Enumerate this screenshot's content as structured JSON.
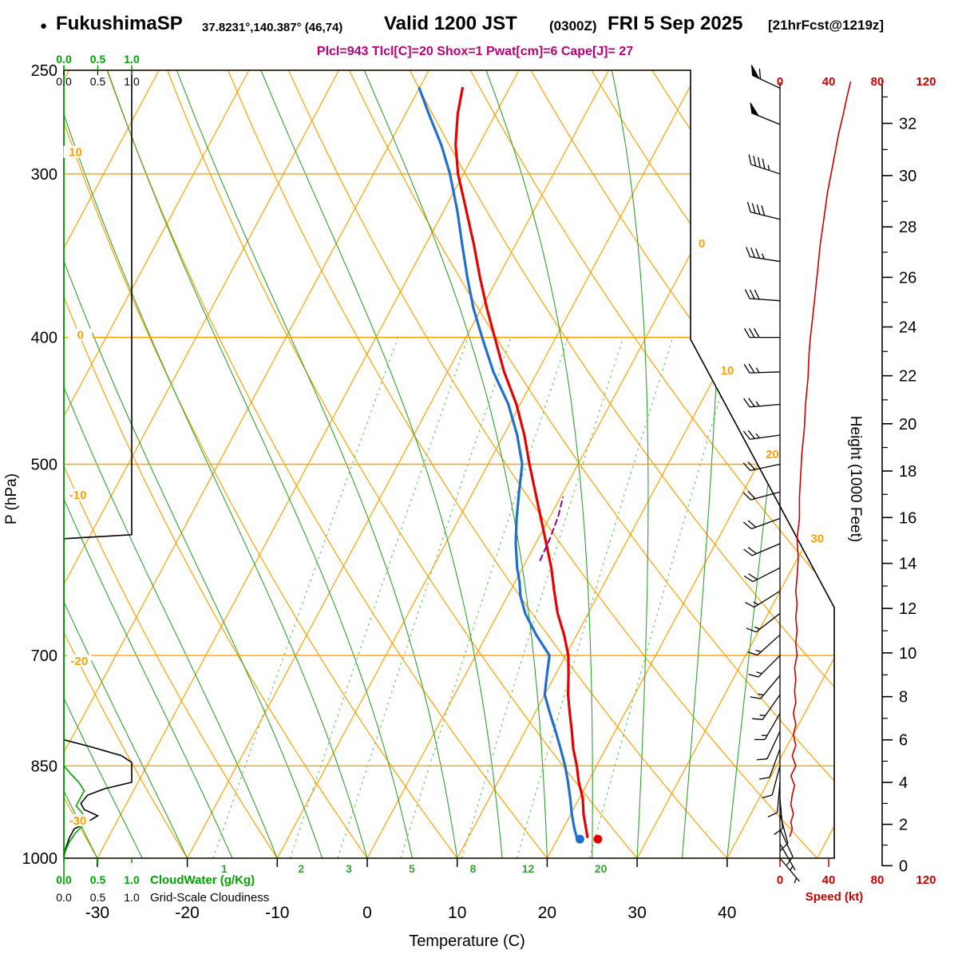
{
  "header": {
    "bullet": "●",
    "station": "FukushimaSP",
    "coords": "37.8231°,140.387° (46,74)",
    "valid": "Valid 1200 JST",
    "valid_utc": "(0300Z)",
    "valid_date": "FRI 5 Sep 2025",
    "forecast": "[21hrFcst@1219z]",
    "params": "Plcl=943 Tlcl[C]=20 Shox=1 Pwat[cm]=6 Cape[J]= 27"
  },
  "axes": {
    "pressure": {
      "label": "P (hPa)"
    },
    "temperature": {
      "label": "Temperature (C)"
    },
    "height": {
      "label": "Height (1000 Feet)"
    },
    "speed": {
      "label": "Speed (kt)"
    },
    "cloudwater": {
      "label": "CloudWater (g/Kg)"
    },
    "cloudiness": {
      "label": "Grid-Scale Cloudiness"
    }
  },
  "colors": {
    "isolines_orange": "#ffa000",
    "moist_adiabat_green": "#2fa12f",
    "mixing_green": "#5cbf5c",
    "mixing_label_green": "#3aa23a",
    "cloudwater_green": "#00a400",
    "temperature_red": "#e60000",
    "dewpoint_blue": "#1f6fce",
    "parcel_purple": "#8b008b",
    "wind_speed_red": "#cc0000",
    "params_magenta": "#bb0077",
    "axis_black": "#000000"
  },
  "chart_data": {
    "type": "skewt_log_p_sounding",
    "pressure_ticks_hpa": [
      250,
      300,
      400,
      500,
      700,
      850,
      1000
    ],
    "temperature_ticks_c": [
      -30,
      -20,
      -10,
      0,
      10,
      20,
      30,
      40
    ],
    "height_ticks_kft": [
      0,
      2,
      4,
      6,
      8,
      10,
      12,
      14,
      16,
      18,
      20,
      22,
      24,
      26,
      28,
      30,
      32
    ],
    "speed_ticks_kt": [
      0,
      40,
      80,
      120
    ],
    "isotherm_labels_c": [
      0,
      10,
      20,
      30
    ],
    "dry_adiabat_labels_c": [
      10,
      0,
      -10,
      -20,
      -30
    ],
    "mixing_ratio_lines_gkg": [
      1,
      2,
      3,
      5,
      8,
      12,
      20
    ],
    "cloud_scale_ticks": [
      "0.0",
      "0.5",
      "1.0"
    ],
    "temperature_profile_p_c": [
      [
        963,
        23.2
      ],
      [
        950,
        22.6
      ],
      [
        925,
        21.4
      ],
      [
        900,
        20.4
      ],
      [
        875,
        19.0
      ],
      [
        850,
        17.8
      ],
      [
        825,
        16.4
      ],
      [
        800,
        15.2
      ],
      [
        775,
        13.9
      ],
      [
        750,
        12.6
      ],
      [
        725,
        11.5
      ],
      [
        700,
        10.3
      ],
      [
        675,
        8.6
      ],
      [
        650,
        6.6
      ],
      [
        625,
        4.9
      ],
      [
        600,
        3.2
      ],
      [
        575,
        1.2
      ],
      [
        550,
        -0.9
      ],
      [
        525,
        -3.1
      ],
      [
        500,
        -5.4
      ],
      [
        475,
        -7.7
      ],
      [
        450,
        -10.4
      ],
      [
        425,
        -13.7
      ],
      [
        400,
        -16.8
      ],
      [
        380,
        -19.4
      ],
      [
        360,
        -22.0
      ],
      [
        340,
        -24.6
      ],
      [
        320,
        -27.5
      ],
      [
        300,
        -30.6
      ],
      [
        285,
        -32.6
      ],
      [
        270,
        -34.2
      ],
      [
        258,
        -35.2
      ]
    ],
    "dewpoint_profile_p_c": [
      [
        963,
        22.0
      ],
      [
        950,
        21.3
      ],
      [
        925,
        20.1
      ],
      [
        900,
        19.0
      ],
      [
        875,
        17.8
      ],
      [
        850,
        16.5
      ],
      [
        825,
        15.0
      ],
      [
        800,
        13.4
      ],
      [
        775,
        11.7
      ],
      [
        750,
        10.0
      ],
      [
        725,
        9.1
      ],
      [
        700,
        8.2
      ],
      [
        675,
        5.5
      ],
      [
        650,
        3.0
      ],
      [
        630,
        1.4
      ],
      [
        615,
        0.5
      ],
      [
        600,
        -0.6
      ],
      [
        575,
        -2.2
      ],
      [
        550,
        -3.6
      ],
      [
        525,
        -4.9
      ],
      [
        500,
        -6.2
      ],
      [
        475,
        -8.5
      ],
      [
        450,
        -11.3
      ],
      [
        425,
        -14.9
      ],
      [
        400,
        -18.2
      ],
      [
        380,
        -20.9
      ],
      [
        360,
        -23.4
      ],
      [
        340,
        -25.9
      ],
      [
        320,
        -28.5
      ],
      [
        300,
        -31.5
      ],
      [
        285,
        -34.2
      ],
      [
        270,
        -37.4
      ],
      [
        258,
        -40.0
      ]
    ],
    "parcel_segment_p_c": [
      [
        592,
        1.5
      ],
      [
        570,
        1.3
      ],
      [
        548,
        0.9
      ],
      [
        530,
        0.3
      ]
    ],
    "surface_temp_dot_p_c": [
      967,
      24.5
    ],
    "surface_dewpoint_dot_p_c": [
      967,
      22.5
    ],
    "wind_barbs_p_dir_kt": [
      [
        1000,
        140,
        5
      ],
      [
        975,
        150,
        7
      ],
      [
        950,
        155,
        8
      ],
      [
        925,
        165,
        10
      ],
      [
        900,
        175,
        9
      ],
      [
        875,
        185,
        10
      ],
      [
        850,
        195,
        11
      ],
      [
        825,
        200,
        12
      ],
      [
        800,
        205,
        12
      ],
      [
        775,
        210,
        13
      ],
      [
        750,
        215,
        14
      ],
      [
        725,
        220,
        15
      ],
      [
        700,
        225,
        15
      ],
      [
        675,
        228,
        15
      ],
      [
        650,
        232,
        16
      ],
      [
        625,
        238,
        17
      ],
      [
        600,
        243,
        18
      ],
      [
        575,
        247,
        18
      ],
      [
        550,
        250,
        19
      ],
      [
        525,
        255,
        20
      ],
      [
        500,
        258,
        21
      ],
      [
        475,
        262,
        23
      ],
      [
        450,
        265,
        25
      ],
      [
        425,
        268,
        26
      ],
      [
        400,
        270,
        28
      ],
      [
        375,
        274,
        31
      ],
      [
        350,
        279,
        34
      ],
      [
        325,
        284,
        38
      ],
      [
        300,
        288,
        43
      ],
      [
        275,
        292,
        52
      ],
      [
        258,
        295,
        58
      ]
    ],
    "wind_speed_profile_p_kt": [
      [
        963,
        8
      ],
      [
        950,
        10
      ],
      [
        938,
        9
      ],
      [
        925,
        11
      ],
      [
        910,
        9
      ],
      [
        895,
        10
      ],
      [
        880,
        12
      ],
      [
        865,
        9
      ],
      [
        850,
        13
      ],
      [
        835,
        10
      ],
      [
        820,
        13
      ],
      [
        805,
        11
      ],
      [
        790,
        13
      ],
      [
        775,
        11
      ],
      [
        760,
        13
      ],
      [
        745,
        12
      ],
      [
        730,
        13
      ],
      [
        715,
        12
      ],
      [
        700,
        14
      ],
      [
        685,
        13
      ],
      [
        670,
        14
      ],
      [
        655,
        13
      ],
      [
        640,
        14
      ],
      [
        625,
        13
      ],
      [
        610,
        14
      ],
      [
        590,
        15
      ],
      [
        570,
        14
      ],
      [
        550,
        16
      ],
      [
        530,
        16
      ],
      [
        510,
        17
      ],
      [
        490,
        18
      ],
      [
        470,
        20
      ],
      [
        450,
        21
      ],
      [
        430,
        23
      ],
      [
        410,
        24
      ],
      [
        400,
        25
      ],
      [
        385,
        27
      ],
      [
        370,
        29
      ],
      [
        355,
        31
      ],
      [
        340,
        33
      ],
      [
        325,
        36
      ],
      [
        310,
        39
      ],
      [
        300,
        42
      ],
      [
        290,
        45
      ],
      [
        280,
        48
      ],
      [
        270,
        52
      ],
      [
        262,
        55
      ],
      [
        255,
        58
      ]
    ],
    "grid_cloudiness_profile_p_frac": [
      [
        252,
        1
      ],
      [
        566,
        1
      ],
      [
        570,
        0
      ],
      [
        812,
        0
      ],
      [
        822,
        0.4
      ],
      [
        835,
        0.85
      ],
      [
        845,
        1
      ],
      [
        875,
        1
      ],
      [
        885,
        0.6
      ],
      [
        895,
        0.35
      ],
      [
        908,
        0.25
      ],
      [
        918,
        0.3
      ],
      [
        928,
        0.5
      ],
      [
        938,
        0.35
      ],
      [
        950,
        0.15
      ],
      [
        965,
        0.08
      ],
      [
        985,
        0.02
      ],
      [
        1000,
        0
      ]
    ],
    "cloud_water_profile_p_gkg": [
      [
        850,
        0
      ],
      [
        862,
        0.1
      ],
      [
        875,
        0.22
      ],
      [
        888,
        0.3
      ],
      [
        900,
        0.24
      ],
      [
        912,
        0.18
      ],
      [
        922,
        0.26
      ],
      [
        932,
        0.33
      ],
      [
        945,
        0.27
      ],
      [
        958,
        0.16
      ],
      [
        972,
        0.08
      ],
      [
        988,
        0.02
      ],
      [
        1000,
        0
      ]
    ]
  }
}
